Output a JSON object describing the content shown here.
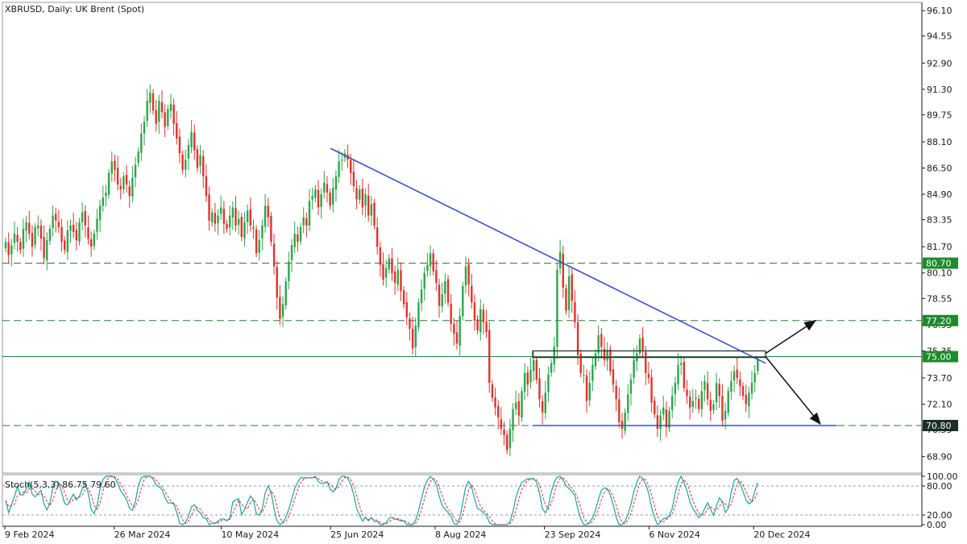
{
  "chart_data": {
    "type": "candlestick",
    "title": "XBRUSD, Daily:  UK Brent (Spot)",
    "price_axis": {
      "ticks": [
        "96.10",
        "94.55",
        "92.90",
        "91.30",
        "89.75",
        "88.10",
        "86.50",
        "84.90",
        "83.35",
        "81.70",
        "80.10",
        "78.55",
        "76.95",
        "75.35",
        "73.70",
        "72.10",
        "70.55",
        "68.90"
      ],
      "tick_values": [
        96.1,
        94.55,
        92.9,
        91.3,
        89.75,
        88.1,
        86.5,
        84.9,
        83.35,
        81.7,
        80.1,
        78.55,
        76.95,
        75.35,
        73.7,
        72.1,
        70.55,
        68.9
      ],
      "range": [
        67.9,
        96.6
      ]
    },
    "time_axis": {
      "labels": [
        "9 Feb 2024",
        "26 Mar 2024",
        "10 May 2024",
        "25 Jun 2024",
        "8 Aug 2024",
        "23 Sep 2024",
        "6 Nov 2024",
        "20 Dec 2024"
      ],
      "label_days": [
        0,
        46,
        91,
        137,
        181,
        227,
        271,
        315
      ]
    },
    "levels": [
      {
        "value": "80.70",
        "price": 80.7,
        "style": "dashed",
        "label_bg": "#1e8a2c"
      },
      {
        "value": "77.20",
        "price": 77.2,
        "style": "dashed",
        "label_bg": "#1e8a2c"
      },
      {
        "value": "75.00",
        "price": 75.0,
        "style": "solid",
        "label_bg": "#1e8a2c"
      },
      {
        "value": "70.80",
        "price": 70.8,
        "style": "dashed",
        "label_bg": "#1b2e2a"
      }
    ],
    "trendlines": [
      {
        "name": "descending resistance",
        "start": {
          "day": 137,
          "price": 87.7
        },
        "end": {
          "day": 320,
          "price": 74.6
        },
        "color": "#3c4fd0"
      },
      {
        "name": "support",
        "start": {
          "day": 222,
          "price": 70.8
        },
        "end": {
          "day": 350,
          "price": 70.8
        },
        "color": "#3c4fd0"
      }
    ],
    "breakout_box": {
      "day_start": 222,
      "day_end": 320,
      "price_top": 75.35,
      "price_bottom": 74.95
    },
    "arrows": [
      {
        "from_day": 320,
        "from_price": 75.2,
        "to_day": 341,
        "to_price": 77.2
      },
      {
        "from_day": 320,
        "from_price": 75.0,
        "to_day": 343,
        "to_price": 70.9
      }
    ],
    "candles_close": [
      82.0,
      81.2,
      81.8,
      82.5,
      82.0,
      81.5,
      82.8,
      83.2,
      82.5,
      81.7,
      82.9,
      83.0,
      82.2,
      81.0,
      82.1,
      82.8,
      83.6,
      83.3,
      82.9,
      82.0,
      81.5,
      82.7,
      83.0,
      82.6,
      82.1,
      83.2,
      83.8,
      83.0,
      82.2,
      81.7,
      82.5,
      83.4,
      84.2,
      84.7,
      85.0,
      86.2,
      86.9,
      86.4,
      85.5,
      85.2,
      86.0,
      85.5,
      84.8,
      85.9,
      86.7,
      87.5,
      88.6,
      89.3,
      90.6,
      91.1,
      90.0,
      89.2,
      90.6,
      89.9,
      89.0,
      90.1,
      90.4,
      89.2,
      88.3,
      87.4,
      86.4,
      87.0,
      87.9,
      88.7,
      87.6,
      86.5,
      87.3,
      86.0,
      84.8,
      83.3,
      83.8,
      83.1,
      83.6,
      84.1,
      83.1,
      82.8,
      83.6,
      84.1,
      83.0,
      83.4,
      82.3,
      83.2,
      83.9,
      83.0,
      82.8,
      81.3,
      82.1,
      83.0,
      84.2,
      83.5,
      82.0,
      80.5,
      78.6,
      77.3,
      78.2,
      79.6,
      80.8,
      81.8,
      82.5,
      82.0,
      82.9,
      83.5,
      83.0,
      84.5,
      84.8,
      85.2,
      84.1,
      84.9,
      85.6,
      85.0,
      84.2,
      85.3,
      86.0,
      86.9,
      87.0,
      87.4,
      87.0,
      86.2,
      85.4,
      84.6,
      85.2,
      84.1,
      84.9,
      83.6,
      84.3,
      83.0,
      81.7,
      80.6,
      79.7,
      80.4,
      81.0,
      80.1,
      79.5,
      80.3,
      79.0,
      78.2,
      77.4,
      76.7,
      75.5,
      76.9,
      78.3,
      79.1,
      80.1,
      80.6,
      81.3,
      80.2,
      79.5,
      78.1,
      78.8,
      79.6,
      78.3,
      77.0,
      76.4,
      75.8,
      77.5,
      79.3,
      80.5,
      79.4,
      78.3,
      77.2,
      76.6,
      77.9,
      77.1,
      76.5,
      73.4,
      72.5,
      71.9,
      71.3,
      70.6,
      70.2,
      69.3,
      70.6,
      71.8,
      72.2,
      71.4,
      72.9,
      74.0,
      73.3,
      74.2,
      74.8,
      73.6,
      72.4,
      71.6,
      72.8,
      73.9,
      74.6,
      75.6,
      80.3,
      81.4,
      79.2,
      77.8,
      79.9,
      78.4,
      77.1,
      75.1,
      74.0,
      73.9,
      72.3,
      73.4,
      74.5,
      75.2,
      76.3,
      75.6,
      74.8,
      75.4,
      74.1,
      73.3,
      72.4,
      71.0,
      70.6,
      71.6,
      72.7,
      73.6,
      74.8,
      75.2,
      76.1,
      75.4,
      74.0,
      73.7,
      72.2,
      71.5,
      70.6,
      71.4,
      71.9,
      70.7,
      71.7,
      72.6,
      73.4,
      74.5,
      74.6,
      73.1,
      72.6,
      71.9,
      72.3,
      72.5,
      71.8,
      72.9,
      73.5,
      72.4,
      71.7,
      72.1,
      73.4,
      72.6,
      71.1,
      71.7,
      72.9,
      73.5,
      74.1,
      73.7,
      73.2,
      72.6,
      72.1,
      72.8,
      73.4,
      74.0,
      74.8
    ]
  },
  "stochastic": {
    "label": "Stoch(5,3,3) 86.75 79.60",
    "ticks": [
      "100.00",
      "80.00",
      "20.00",
      "0.00"
    ],
    "tick_values": [
      100,
      80,
      20,
      0
    ],
    "levels": [
      80,
      20
    ]
  },
  "colors": {
    "bull": "#2aa64a",
    "bear": "#e3312b",
    "trendline": "#3c4fd0",
    "level_line": "#2f7b3b",
    "stoch_main": "#1aa3a8",
    "stoch_signal": "#e3312b",
    "grid": "#c8c8c8",
    "axis": "#1a1a1a"
  }
}
